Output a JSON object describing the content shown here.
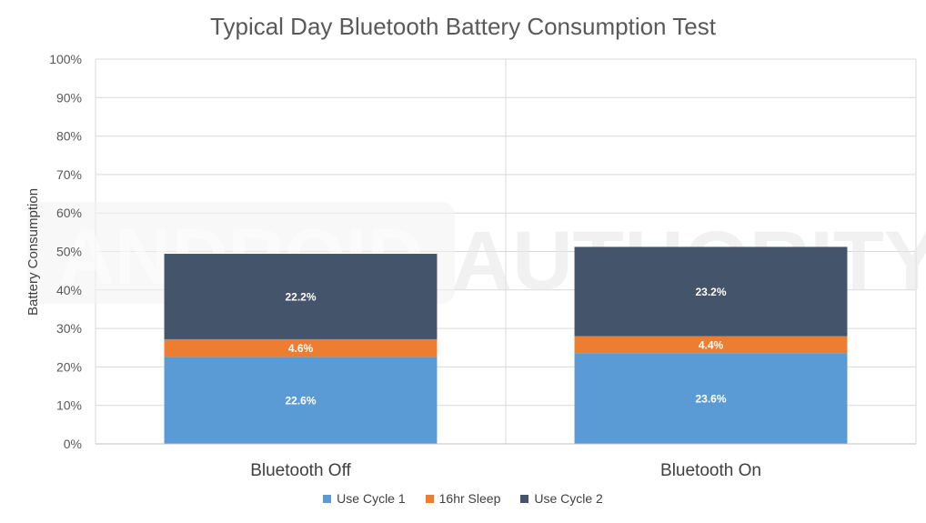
{
  "chart_data": {
    "type": "bar",
    "stacked": true,
    "title": "Typical Day Bluetooth Battery Consumption Test",
    "ylabel": "Battery Consumption",
    "xlabel": "",
    "ylim": [
      0,
      100
    ],
    "yticks": [
      "0%",
      "10%",
      "20%",
      "30%",
      "40%",
      "50%",
      "60%",
      "70%",
      "80%",
      "90%",
      "100%"
    ],
    "categories": [
      "Bluetooth Off",
      "Bluetooth On"
    ],
    "series": [
      {
        "name": "Use Cycle 1",
        "color": "#5b9bd5",
        "values": [
          22.6,
          23.6
        ],
        "labels": [
          "22.6%",
          "23.6%"
        ]
      },
      {
        "name": "16hr Sleep",
        "color": "#ed7d31",
        "values": [
          4.6,
          4.4
        ],
        "labels": [
          "4.6%",
          "4.4%"
        ]
      },
      {
        "name": "Use Cycle 2",
        "color": "#44546a",
        "values": [
          22.2,
          23.2
        ],
        "labels": [
          "22.2%",
          "23.2%"
        ]
      }
    ],
    "legend_position": "bottom",
    "grid": true
  },
  "watermark": {
    "left": "ANDROID",
    "right": "AUTHORITY"
  }
}
